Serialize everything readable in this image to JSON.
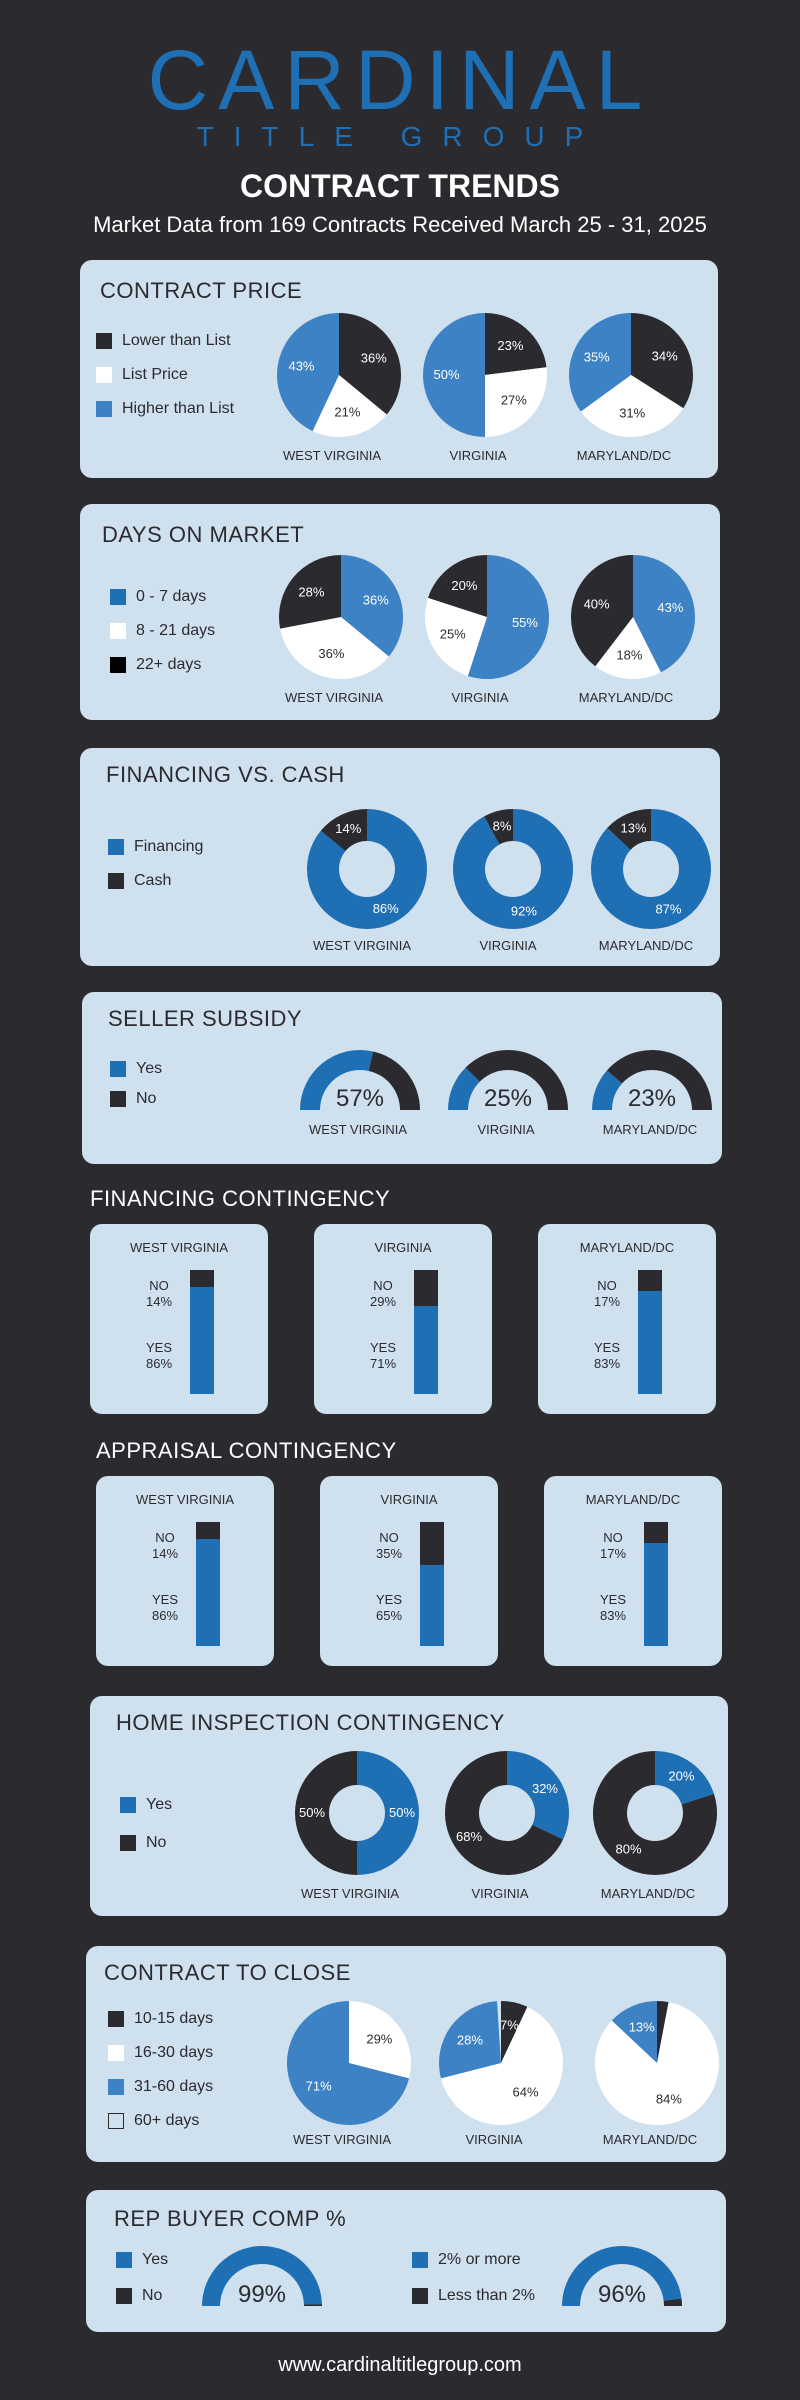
{
  "brand": {
    "name": "CARDINAL",
    "sub": "TITLE GROUP"
  },
  "title": "CONTRACT TRENDS",
  "subtitle": "Market Data from 169 Contracts Received March 25 - 31, 2025",
  "colors": {
    "dark": "#2b2b2f",
    "blue": "#3d82c4",
    "navy": "#1f6fb5",
    "white": "#ffffff",
    "panel": "#cfe0ee"
  },
  "regions": [
    "WEST VIRGINIA",
    "VIRGINIA",
    "MARYLAND/DC"
  ],
  "contract_price": {
    "title": "CONTRACT PRICE",
    "legend": [
      "Lower than List",
      "List Price",
      "Higher than List"
    ],
    "charts": [
      {
        "region": "WEST VIRGINIA",
        "values": [
          36,
          21,
          43
        ]
      },
      {
        "region": "VIRGINIA",
        "values": [
          23,
          27,
          50
        ]
      },
      {
        "region": "MARYLAND/DC",
        "values": [
          34,
          31,
          35
        ]
      }
    ]
  },
  "days_on_market": {
    "title": "DAYS ON MARKET",
    "legend": [
      "0 - 7 days",
      "8 - 21 days",
      "22+ days"
    ],
    "charts": [
      {
        "region": "WEST VIRGINIA",
        "values": [
          36,
          36,
          28
        ]
      },
      {
        "region": "VIRGINIA",
        "values": [
          55,
          25,
          20
        ]
      },
      {
        "region": "MARYLAND/DC",
        "values": [
          43,
          18,
          40
        ]
      }
    ]
  },
  "financing": {
    "title": "FINANCING VS. CASH",
    "legend": [
      "Financing",
      "Cash"
    ],
    "charts": [
      {
        "region": "WEST VIRGINIA",
        "values": [
          86,
          14
        ]
      },
      {
        "region": "VIRGINIA",
        "values": [
          92,
          8
        ]
      },
      {
        "region": "MARYLAND/DC",
        "values": [
          87,
          13
        ]
      }
    ]
  },
  "seller_subsidy": {
    "title": "SELLER SUBSIDY",
    "legend": [
      "Yes",
      "No"
    ],
    "charts": [
      {
        "region": "WEST VIRGINIA",
        "value": 57,
        "label": "57%"
      },
      {
        "region": "VIRGINIA",
        "value": 25,
        "label": "25%"
      },
      {
        "region": "MARYLAND/DC",
        "value": 23,
        "label": "23%"
      }
    ]
  },
  "financing_contingency": {
    "title": "FINANCING CONTINGENCY",
    "no_label": "NO",
    "yes_label": "YES",
    "cards": [
      {
        "region": "WEST VIRGINIA",
        "no": 14,
        "yes": 86,
        "no_text": "14%",
        "yes_text": "86%"
      },
      {
        "region": "VIRGINIA",
        "no": 29,
        "yes": 71,
        "no_text": "29%",
        "yes_text": "71%"
      },
      {
        "region": "MARYLAND/DC",
        "no": 17,
        "yes": 83,
        "no_text": "17%",
        "yes_text": "83%"
      }
    ]
  },
  "appraisal_contingency": {
    "title": "APPRAISAL CONTINGENCY",
    "no_label": "NO",
    "yes_label": "YES",
    "cards": [
      {
        "region": "WEST VIRGINIA",
        "no": 14,
        "yes": 86,
        "no_text": "14%",
        "yes_text": "86%"
      },
      {
        "region": "VIRGINIA",
        "no": 35,
        "yes": 65,
        "no_text": "35%",
        "yes_text": "65%"
      },
      {
        "region": "MARYLAND/DC",
        "no": 17,
        "yes": 83,
        "no_text": "17%",
        "yes_text": "83%"
      }
    ]
  },
  "home_inspection": {
    "title": "HOME INSPECTION CONTINGENCY",
    "legend": [
      "Yes",
      "No"
    ],
    "charts": [
      {
        "region": "WEST VIRGINIA",
        "values": [
          50,
          50
        ]
      },
      {
        "region": "VIRGINIA",
        "values": [
          32,
          68
        ]
      },
      {
        "region": "MARYLAND/DC",
        "values": [
          20,
          80
        ]
      }
    ]
  },
  "contract_to_close": {
    "title": "CONTRACT TO CLOSE",
    "legend": [
      "10-15 days",
      "16-30 days",
      "31-60 days",
      "60+ days"
    ],
    "charts": [
      {
        "region": "WEST VIRGINIA",
        "values": [
          0,
          29,
          71,
          0
        ]
      },
      {
        "region": "VIRGINIA",
        "values": [
          7,
          64,
          28,
          1
        ]
      },
      {
        "region": "MARYLAND/DC",
        "values": [
          3,
          84,
          13,
          0
        ]
      }
    ]
  },
  "rep_buyer_comp": {
    "title": "REP BUYER COMP %",
    "legend_a": [
      "Yes",
      "No"
    ],
    "legend_b": [
      "2% or more",
      "Less than 2%"
    ],
    "gauges": [
      {
        "value": 99,
        "label": "99%"
      },
      {
        "value": 96,
        "label": "96%"
      }
    ]
  },
  "footer": "www.cardinaltitlegroup.com"
}
